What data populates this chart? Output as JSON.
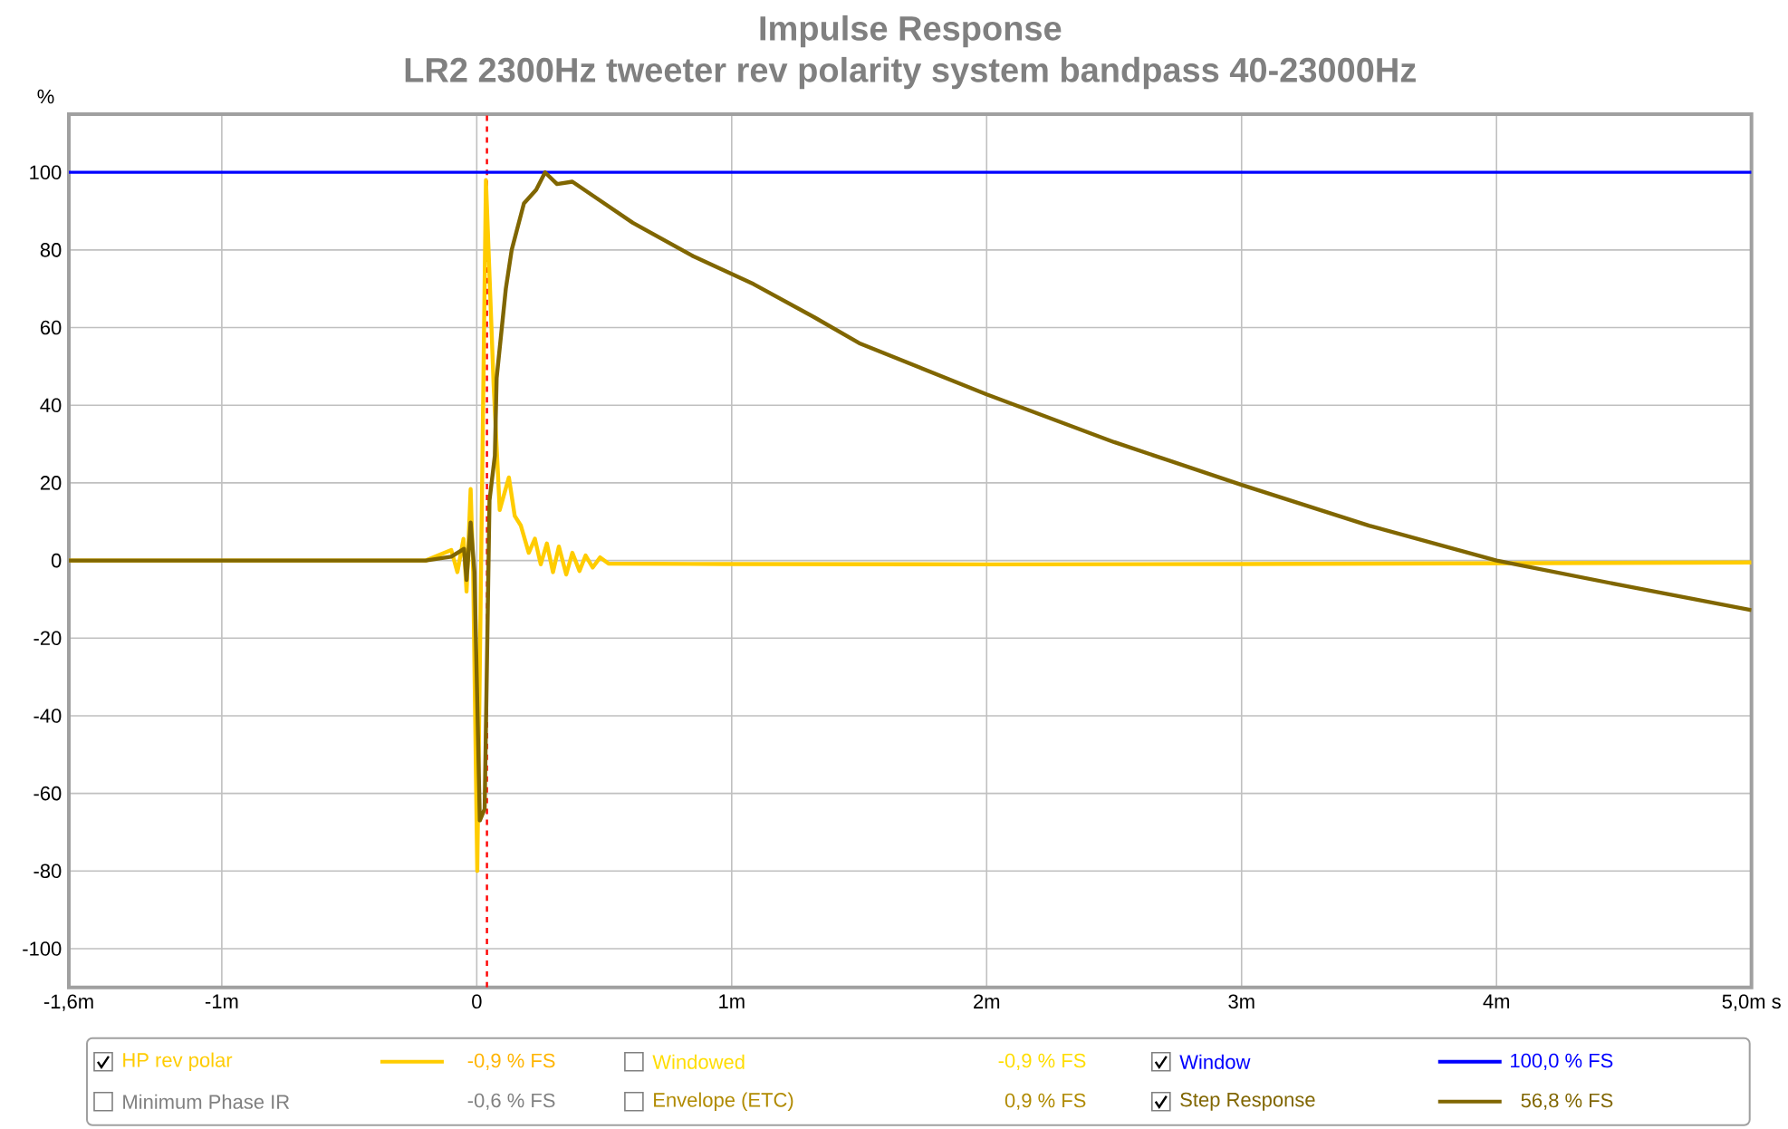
{
  "chart_data": {
    "type": "line",
    "title": "Impulse Response",
    "subtitle": "LR2 2300Hz tweeter rev polarity system bandpass 40-23000Hz",
    "ylabel": "%",
    "xlim": [
      -1.6,
      5
    ],
    "xticks": [
      {
        "value": -1.6,
        "label": "-1,6m"
      },
      {
        "value": -1,
        "label": "-1m"
      },
      0,
      {
        "value": 1,
        "label": "1m"
      },
      {
        "value": 2,
        "label": "2m"
      },
      {
        "value": 3,
        "label": "3m"
      },
      {
        "value": 4,
        "label": "4m"
      },
      {
        "value": 5,
        "label": "5,0m s"
      }
    ],
    "ylim": [
      -110,
      115
    ],
    "yticks": [
      100,
      80,
      60,
      40,
      20,
      0,
      -20,
      -40,
      -60,
      -80,
      -100
    ],
    "grid": true,
    "legend": "bottom",
    "series": [
      {
        "name": "HP rev polar",
        "color": "#ffcc00",
        "x": [
          -1.6,
          -0.2,
          -0.1,
          -0.076,
          -0.052,
          -0.04,
          -0.024,
          -0.014,
          0.002,
          0.036,
          0.066,
          0.09,
          0.126,
          0.149,
          0.173,
          0.204,
          0.228,
          0.251,
          0.275,
          0.299,
          0.322,
          0.351,
          0.375,
          0.403,
          0.427,
          0.455,
          0.484,
          0.517,
          0.97,
          2,
          3,
          4,
          5
        ],
        "values": [
          0,
          0,
          2.7,
          -3,
          5.6,
          -8,
          18.4,
          -3,
          -80,
          98,
          45.5,
          13,
          21.4,
          11.5,
          9,
          2,
          5.6,
          -1,
          4.4,
          -3,
          3.6,
          -3.6,
          2,
          -2.7,
          1.3,
          -1.8,
          0.8,
          -0.8,
          -0.9,
          -1,
          -0.9,
          -0.7,
          -0.5
        ]
      },
      {
        "name": "Window",
        "color": "#0000ff",
        "x": [
          -1.6,
          5
        ],
        "values": [
          100,
          100
        ]
      },
      {
        "name": "Step Response",
        "color": "#806600",
        "x": [
          -1.6,
          -0.2,
          -0.1,
          -0.05,
          -0.04,
          -0.024,
          -0.009,
          0.012,
          0.031,
          0.05,
          0.071,
          0.078,
          0.114,
          0.137,
          0.185,
          0.233,
          0.268,
          0.315,
          0.375,
          0.469,
          0.612,
          0.849,
          1.086,
          1.323,
          1.5,
          2,
          2.5,
          3,
          3.5,
          4,
          4.5,
          5
        ],
        "values": [
          0,
          0,
          1,
          3,
          -5,
          9.8,
          -3,
          -67,
          -64,
          15.5,
          27,
          47,
          70,
          80,
          92,
          95.5,
          100,
          97,
          97.6,
          93.4,
          87,
          78.4,
          71.2,
          62.7,
          56,
          42.8,
          30.5,
          19.5,
          9,
          0,
          -6.5,
          -12.8
        ]
      }
    ],
    "ref_lines": [
      {
        "axis": "x",
        "value": 0.04,
        "color": "#ff0000",
        "line_style": "dashed"
      }
    ],
    "annotations": [
      "-0,9 % FS",
      "Windowed",
      "-0,9 % FS",
      "100,0 % FS",
      "Minimum Phase IR",
      "-0,6 % FS",
      "Envelope (ETC)",
      "0,9 % FS",
      "56,8 % FS"
    ]
  }
}
